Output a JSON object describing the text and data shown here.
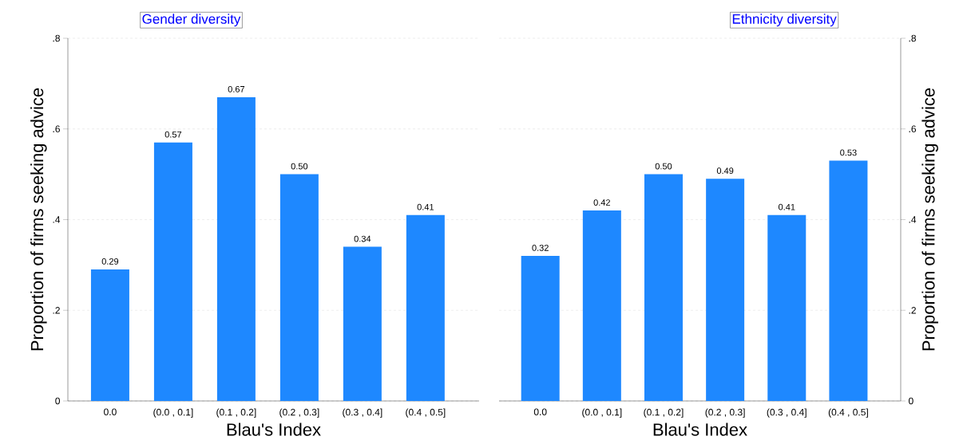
{
  "chart_data": [
    {
      "type": "bar",
      "title": "Gender diversity",
      "xlabel": "Blau's Index",
      "ylabel": "Proportion of firms seeking advice",
      "categories": [
        "0.0",
        "(0.0 , 0.1]",
        "(0.1 , 0.2]",
        "(0.2 , 0.3]",
        "(0.3 , 0.4]",
        "(0.4 , 0.5]"
      ],
      "series": [
        {
          "color": "#1e88ff",
          "values": [
            0.29,
            0.57,
            0.67,
            0.5,
            0.34,
            0.41
          ],
          "value_labels": [
            "0.29",
            "0.57",
            "0.67",
            "0.50",
            "0.34",
            "0.41"
          ]
        }
      ],
      "ylim": [
        0,
        0.8
      ],
      "yticks": [
        0,
        {
          "value": 0.2,
          "label": ".2"
        },
        {
          "value": 0.4,
          "label": ".4"
        },
        {
          "value": 0.6,
          "label": ".6"
        },
        {
          "value": 0.8,
          "label": ".8"
        }
      ],
      "grid": "y"
    },
    {
      "type": "bar",
      "title": "Ethnicity diversity",
      "xlabel": "Blau's Index",
      "y2label": "Proportion of firms seeking advice",
      "categories": [
        "0.0",
        "(0.0 , 0.1]",
        "(0.1 , 0.2]",
        "(0.2 , 0.3]",
        "(0.3 , 0.4]",
        "(0.4 , 0.5]"
      ],
      "series": [
        {
          "color": "#1e88ff",
          "axis": "y2",
          "values": [
            0.32,
            0.42,
            0.5,
            0.49,
            0.41,
            0.53
          ],
          "value_labels": [
            "0.32",
            "0.42",
            "0.50",
            "0.49",
            "0.41",
            "0.53"
          ]
        }
      ],
      "y2lim": [
        0,
        0.8
      ],
      "y2ticks": [
        0,
        {
          "value": 0.2,
          "label": ".2"
        },
        {
          "value": 0.4,
          "label": ".4"
        },
        {
          "value": 0.6,
          "label": ".6"
        },
        {
          "value": 0.8,
          "label": ".8"
        }
      ],
      "grid": "y"
    }
  ]
}
